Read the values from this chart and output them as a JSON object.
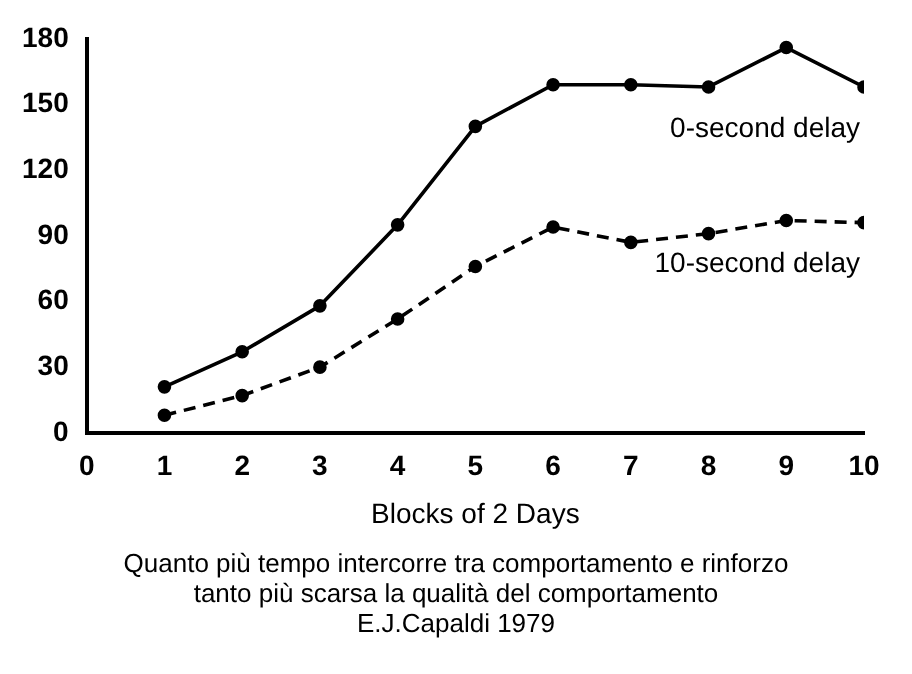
{
  "chart_data": {
    "type": "line",
    "xlabel": "Blocks of 2 Days",
    "x": [
      1,
      2,
      3,
      4,
      5,
      6,
      7,
      8,
      9,
      10
    ],
    "series": [
      {
        "name": "0-second delay",
        "color": "#000000",
        "line_style": "solid",
        "values": [
          21,
          37,
          58,
          95,
          140,
          159,
          159,
          158,
          176,
          158
        ]
      },
      {
        "name": "10-second delay",
        "color": "#000000",
        "line_style": "dashed",
        "values": [
          8,
          17,
          30,
          52,
          76,
          94,
          87,
          91,
          97,
          96
        ]
      }
    ],
    "xlim": [
      0,
      10
    ],
    "xticks": [
      0,
      1,
      2,
      3,
      4,
      5,
      6,
      7,
      8,
      9,
      10
    ],
    "ylim": [
      0,
      180
    ],
    "yticks": [
      0,
      30,
      60,
      90,
      120,
      150,
      180
    ],
    "grid": false,
    "legend": false,
    "marker": "circle",
    "annotations": [
      "Quanto  più  tempo intercorre tra comportamento e rinforzo",
      "tanto più scarsa la qualità del comportamento",
      "E.J.Capaldi 1979"
    ]
  }
}
